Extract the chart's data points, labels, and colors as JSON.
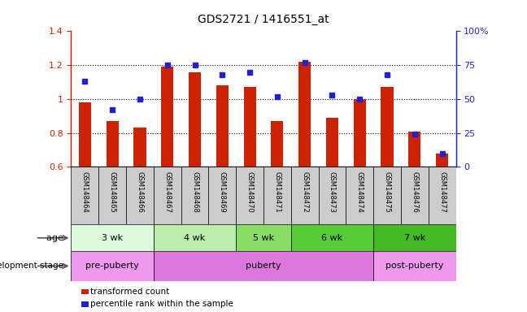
{
  "title": "GDS2721 / 1416551_at",
  "samples": [
    "GSM148464",
    "GSM148465",
    "GSM148466",
    "GSM148467",
    "GSM148468",
    "GSM148469",
    "GSM148470",
    "GSM148471",
    "GSM148472",
    "GSM148473",
    "GSM148474",
    "GSM148475",
    "GSM148476",
    "GSM148477"
  ],
  "transformed_count": [
    0.98,
    0.87,
    0.83,
    1.19,
    1.16,
    1.08,
    1.07,
    0.87,
    1.22,
    0.89,
    1.0,
    1.07,
    0.81,
    0.68
  ],
  "percentile_rank_pct": [
    63,
    42,
    50,
    75,
    75,
    68,
    70,
    52,
    77,
    53,
    50,
    68,
    24,
    10
  ],
  "bar_color": "#cc2200",
  "dot_color": "#2222cc",
  "ylim_left": [
    0.6,
    1.4
  ],
  "ylim_right": [
    0,
    100
  ],
  "yticks_left": [
    0.6,
    0.8,
    1.0,
    1.2,
    1.4
  ],
  "yticks_right": [
    0,
    25,
    50,
    75,
    100
  ],
  "ytick_labels_right": [
    "0",
    "25",
    "50",
    "75",
    "100%"
  ],
  "age_groups": [
    {
      "label": "3 wk",
      "start": 0,
      "end": 3,
      "color": "#ddfadd"
    },
    {
      "label": "4 wk",
      "start": 3,
      "end": 6,
      "color": "#bbeeaa"
    },
    {
      "label": "5 wk",
      "start": 6,
      "end": 8,
      "color": "#88dd66"
    },
    {
      "label": "6 wk",
      "start": 8,
      "end": 11,
      "color": "#55cc33"
    },
    {
      "label": "7 wk",
      "start": 11,
      "end": 14,
      "color": "#44bb22"
    }
  ],
  "dev_groups": [
    {
      "label": "pre-puberty",
      "start": 0,
      "end": 3,
      "color": "#ee99ee"
    },
    {
      "label": "puberty",
      "start": 3,
      "end": 11,
      "color": "#dd77dd"
    },
    {
      "label": "post-puberty",
      "start": 11,
      "end": 14,
      "color": "#ee99ee"
    }
  ],
  "age_label": "age",
  "dev_label": "development stage",
  "legend_items": [
    {
      "color": "#cc2200",
      "label": "transformed count"
    },
    {
      "color": "#2222cc",
      "label": "percentile rank within the sample"
    }
  ],
  "baseline": 0.6,
  "sample_bg_color": "#cccccc",
  "bg_color": "#ffffff",
  "bar_width": 0.45
}
